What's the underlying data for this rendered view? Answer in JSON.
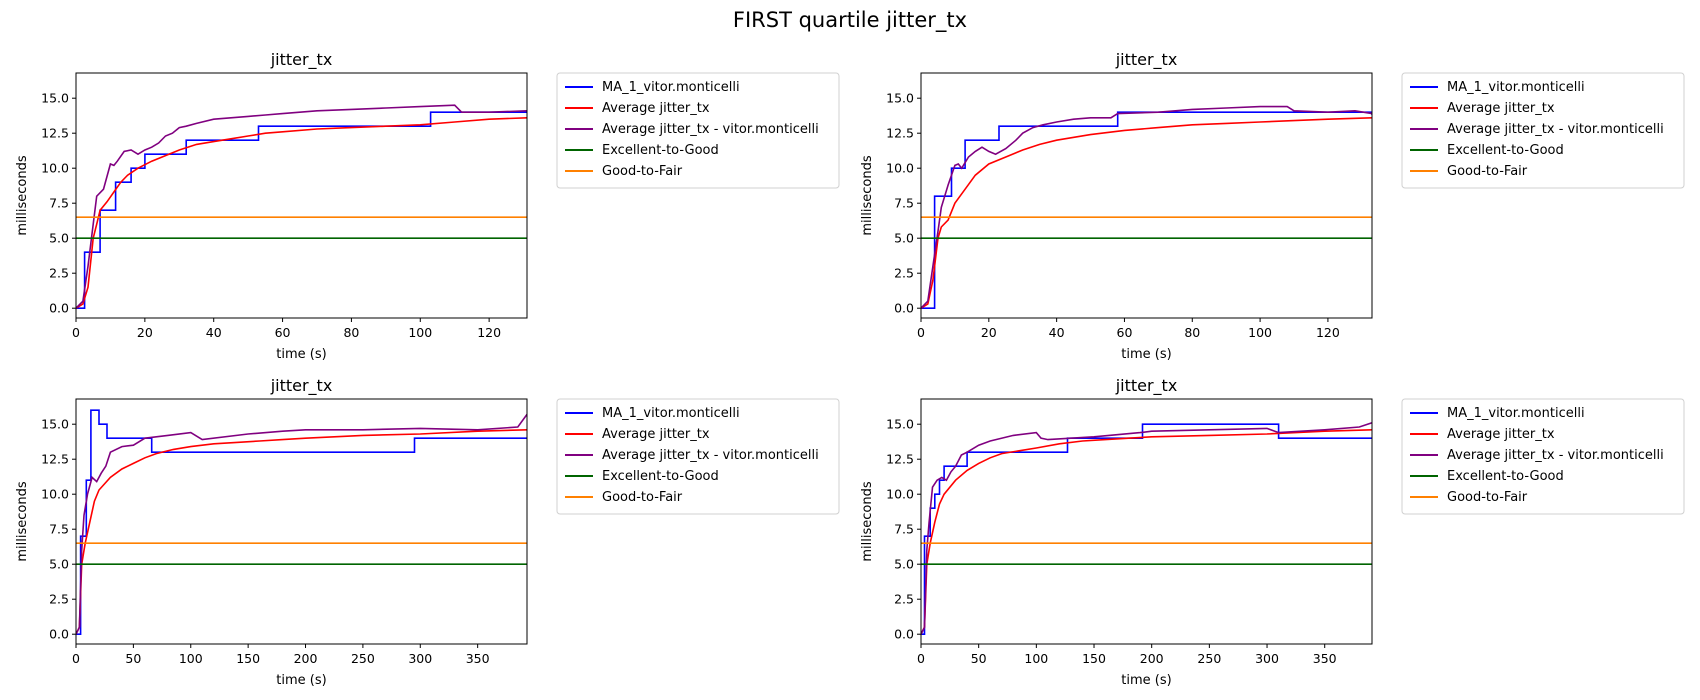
{
  "figure": {
    "title": "FIRST quartile jitter_tx"
  },
  "chart_data": [
    {
      "type": "line",
      "title": "jitter_tx",
      "xlabel": "time (s)",
      "ylabel": "milliseconds",
      "xlim": [
        0,
        131
      ],
      "ylim": [
        -0.7,
        16.8
      ],
      "xticks": [
        0,
        20,
        40,
        60,
        80,
        100,
        120
      ],
      "yticks": [
        0.0,
        2.5,
        5.0,
        7.5,
        10.0,
        12.5,
        15.0
      ],
      "ytick_labels": [
        "0.0",
        "2.5",
        "5.0",
        "7.5",
        "10.0",
        "12.5",
        "15.0"
      ],
      "grid": false,
      "legend_position": "outside-right",
      "series": [
        {
          "name": "MA_1_vitor.monticelli",
          "color": "#0000ff",
          "step": true,
          "x": [
            0,
            2,
            2.5,
            7,
            11.5,
            16,
            20,
            24,
            32,
            38,
            45,
            52,
            53,
            60,
            70,
            80,
            90,
            100,
            102,
            103,
            120,
            131
          ],
          "y": [
            0,
            0,
            4,
            7,
            9,
            10,
            11,
            11,
            12,
            12,
            12,
            12,
            13,
            13,
            13,
            13,
            13,
            13,
            13,
            14,
            14,
            14
          ]
        },
        {
          "name": "Average jitter_tx",
          "color": "#ff0000",
          "x": [
            0,
            2,
            3.5,
            5,
            6,
            7,
            9,
            11,
            13,
            15,
            18,
            22,
            26,
            30,
            35,
            40,
            45,
            50,
            55,
            60,
            70,
            80,
            90,
            100,
            110,
            120,
            131
          ],
          "y": [
            0,
            0.3,
            1.5,
            5,
            6,
            7,
            7.6,
            8.3,
            9,
            9.5,
            10,
            10.5,
            10.9,
            11.3,
            11.7,
            11.9,
            12.1,
            12.3,
            12.5,
            12.6,
            12.8,
            12.9,
            13.0,
            13.1,
            13.3,
            13.5,
            13.6
          ]
        },
        {
          "name": "Average jitter_tx - vitor.monticelli",
          "color": "#800080",
          "x": [
            0,
            2,
            3.5,
            5,
            6,
            8,
            10,
            11,
            12,
            14,
            16,
            18,
            20,
            22,
            24,
            26,
            28,
            30,
            32,
            35,
            40,
            45,
            50,
            55,
            60,
            70,
            80,
            90,
            100,
            110,
            112,
            120,
            131
          ],
          "y": [
            0,
            0.5,
            3,
            6,
            8,
            8.5,
            10.3,
            10.2,
            10.5,
            11.2,
            11.3,
            11,
            11.3,
            11.5,
            11.8,
            12.3,
            12.5,
            12.9,
            13.0,
            13.2,
            13.5,
            13.6,
            13.7,
            13.8,
            13.9,
            14.1,
            14.2,
            14.3,
            14.4,
            14.5,
            14.0,
            14.0,
            14.1
          ]
        },
        {
          "name": "Excellent-to-Good",
          "color": "#006400",
          "x": [
            0,
            131
          ],
          "y": [
            5,
            5
          ]
        },
        {
          "name": "Good-to-Fair",
          "color": "#ff8000",
          "x": [
            0,
            131
          ],
          "y": [
            6.5,
            6.5
          ]
        }
      ]
    },
    {
      "type": "line",
      "title": "jitter_tx",
      "xlabel": "time (s)",
      "ylabel": "milliseconds",
      "xlim": [
        0,
        133
      ],
      "ylim": [
        -0.7,
        16.8
      ],
      "xticks": [
        0,
        20,
        40,
        60,
        80,
        100,
        120
      ],
      "yticks": [
        0.0,
        2.5,
        5.0,
        7.5,
        10.0,
        12.5,
        15.0
      ],
      "ytick_labels": [
        "0.0",
        "2.5",
        "5.0",
        "7.5",
        "10.0",
        "12.5",
        "15.0"
      ],
      "grid": false,
      "legend_position": "outside-right",
      "series": [
        {
          "name": "MA_1_vitor.monticelli",
          "color": "#0000ff",
          "step": true,
          "x": [
            0,
            3.5,
            4,
            8,
            9,
            13,
            23,
            57,
            58,
            110,
            131,
            133
          ],
          "y": [
            0,
            0,
            8,
            8,
            10,
            12,
            13,
            13,
            14,
            14,
            14,
            13.8
          ]
        },
        {
          "name": "Average jitter_tx",
          "color": "#ff0000",
          "x": [
            0,
            2,
            3.5,
            5,
            6,
            8,
            10,
            13,
            16,
            20,
            25,
            30,
            35,
            40,
            50,
            60,
            70,
            80,
            90,
            100,
            110,
            120,
            133
          ],
          "y": [
            0,
            0.3,
            2,
            5,
            5.8,
            6.3,
            7.5,
            8.5,
            9.5,
            10.3,
            10.8,
            11.3,
            11.7,
            12.0,
            12.4,
            12.7,
            12.9,
            13.1,
            13.2,
            13.3,
            13.4,
            13.5,
            13.6
          ]
        },
        {
          "name": "Average jitter_tx - vitor.monticelli",
          "color": "#800080",
          "x": [
            0,
            2,
            3.5,
            5,
            6,
            8,
            10,
            11,
            12,
            14,
            16,
            18,
            20,
            22,
            25,
            28,
            30,
            33,
            36,
            40,
            45,
            50,
            56,
            58,
            70,
            80,
            90,
            100,
            108,
            110,
            120,
            128,
            133
          ],
          "y": [
            0,
            0.5,
            3,
            5.5,
            7.2,
            8.8,
            10.2,
            10.3,
            10,
            10.8,
            11.2,
            11.5,
            11.2,
            11.0,
            11.4,
            12.0,
            12.5,
            12.9,
            13.1,
            13.3,
            13.5,
            13.6,
            13.6,
            13.9,
            14.0,
            14.2,
            14.3,
            14.4,
            14.4,
            14.1,
            14.0,
            14.1,
            13.9
          ]
        },
        {
          "name": "Excellent-to-Good",
          "color": "#006400",
          "x": [
            0,
            133
          ],
          "y": [
            5,
            5
          ]
        },
        {
          "name": "Good-to-Fair",
          "color": "#ff8000",
          "x": [
            0,
            133
          ],
          "y": [
            6.5,
            6.5
          ]
        }
      ]
    },
    {
      "type": "line",
      "title": "jitter_tx",
      "xlabel": "time (s)",
      "ylabel": "milliseconds",
      "xlim": [
        0,
        393
      ],
      "ylim": [
        -0.7,
        16.8
      ],
      "xticks": [
        0,
        50,
        100,
        150,
        200,
        250,
        300,
        350
      ],
      "yticks": [
        0.0,
        2.5,
        5.0,
        7.5,
        10.0,
        12.5,
        15.0
      ],
      "ytick_labels": [
        "0.0",
        "2.5",
        "5.0",
        "7.5",
        "10.0",
        "12.5",
        "15.0"
      ],
      "grid": false,
      "legend_position": "outside-right",
      "series": [
        {
          "name": "MA_1_vitor.monticelli",
          "color": "#0000ff",
          "step": true,
          "x": [
            0,
            3,
            4,
            6,
            9,
            13,
            20,
            27,
            30,
            65,
            66,
            293,
            295,
            393
          ],
          "y": [
            0,
            0,
            7,
            7,
            11,
            16,
            15,
            14,
            14,
            14,
            13,
            13,
            14,
            14
          ]
        },
        {
          "name": "Average jitter_tx",
          "color": "#ff0000",
          "x": [
            0,
            3,
            5,
            8,
            12,
            16,
            20,
            30,
            40,
            50,
            60,
            70,
            85,
            100,
            120,
            140,
            160,
            180,
            200,
            250,
            300,
            350,
            393
          ],
          "y": [
            0,
            0.5,
            5,
            6.5,
            8,
            9.5,
            10.3,
            11.2,
            11.8,
            12.2,
            12.6,
            12.9,
            13.2,
            13.4,
            13.6,
            13.7,
            13.8,
            13.9,
            14.0,
            14.2,
            14.3,
            14.5,
            14.6
          ]
        },
        {
          "name": "Average jitter_tx - vitor.monticelli",
          "color": "#800080",
          "x": [
            0,
            3,
            5,
            7,
            10,
            14,
            18,
            22,
            26,
            30,
            40,
            50,
            60,
            70,
            80,
            100,
            110,
            150,
            180,
            200,
            250,
            300,
            350,
            385,
            393
          ],
          "y": [
            0,
            0.5,
            6,
            8.5,
            10,
            11.2,
            10.9,
            11.5,
            12.0,
            13.0,
            13.4,
            13.5,
            14.0,
            14.1,
            14.2,
            14.4,
            13.9,
            14.3,
            14.5,
            14.6,
            14.6,
            14.7,
            14.6,
            14.8,
            15.7
          ]
        },
        {
          "name": "Excellent-to-Good",
          "color": "#006400",
          "x": [
            0,
            393
          ],
          "y": [
            5,
            5
          ]
        },
        {
          "name": "Good-to-Fair",
          "color": "#ff8000",
          "x": [
            0,
            393
          ],
          "y": [
            6.5,
            6.5
          ]
        }
      ]
    },
    {
      "type": "line",
      "title": "jitter_tx",
      "xlabel": "time (s)",
      "ylabel": "milliseconds",
      "xlim": [
        0,
        391
      ],
      "ylim": [
        -0.7,
        16.8
      ],
      "xticks": [
        0,
        50,
        100,
        150,
        200,
        250,
        300,
        350
      ],
      "yticks": [
        0.0,
        2.5,
        5.0,
        7.5,
        10.0,
        12.5,
        15.0
      ],
      "ytick_labels": [
        "0.0",
        "2.5",
        "5.0",
        "7.5",
        "10.0",
        "12.5",
        "15.0"
      ],
      "grid": false,
      "legend_position": "outside-right",
      "series": [
        {
          "name": "MA_1_vitor.monticelli",
          "color": "#0000ff",
          "step": true,
          "x": [
            0,
            2,
            3,
            5,
            8,
            12,
            16,
            20,
            40,
            126,
            127,
            190,
            192,
            308,
            310,
            391
          ],
          "y": [
            0,
            0,
            7,
            7,
            9,
            10,
            11,
            12,
            13,
            13,
            14,
            14,
            15,
            15,
            14,
            14
          ]
        },
        {
          "name": "Average jitter_tx",
          "color": "#ff0000",
          "x": [
            0,
            3,
            5,
            8,
            12,
            16,
            20,
            30,
            40,
            50,
            60,
            70,
            85,
            100,
            120,
            140,
            160,
            180,
            200,
            250,
            300,
            350,
            391
          ],
          "y": [
            0,
            0.5,
            5,
            6.5,
            8,
            9.3,
            10.0,
            11.0,
            11.7,
            12.2,
            12.6,
            12.9,
            13.1,
            13.3,
            13.6,
            13.8,
            13.9,
            14.0,
            14.1,
            14.2,
            14.3,
            14.5,
            14.6
          ]
        },
        {
          "name": "Average jitter_tx - vitor.monticelli",
          "color": "#800080",
          "x": [
            0,
            3,
            5,
            7,
            10,
            14,
            18,
            22,
            26,
            30,
            35,
            40,
            50,
            60,
            80,
            100,
            104,
            110,
            150,
            190,
            200,
            250,
            300,
            310,
            350,
            380,
            391
          ],
          "y": [
            0,
            0.5,
            6,
            8,
            10.5,
            11.0,
            11.2,
            11.0,
            11.6,
            12.0,
            12.8,
            13.0,
            13.5,
            13.8,
            14.2,
            14.4,
            14.0,
            13.9,
            14.1,
            14.4,
            14.5,
            14.6,
            14.7,
            14.4,
            14.6,
            14.8,
            15.1
          ]
        },
        {
          "name": "Excellent-to-Good",
          "color": "#006400",
          "x": [
            0,
            391
          ],
          "y": [
            5,
            5
          ]
        },
        {
          "name": "Good-to-Fair",
          "color": "#ff8000",
          "x": [
            0,
            391
          ],
          "y": [
            6.5,
            6.5
          ]
        }
      ]
    }
  ]
}
